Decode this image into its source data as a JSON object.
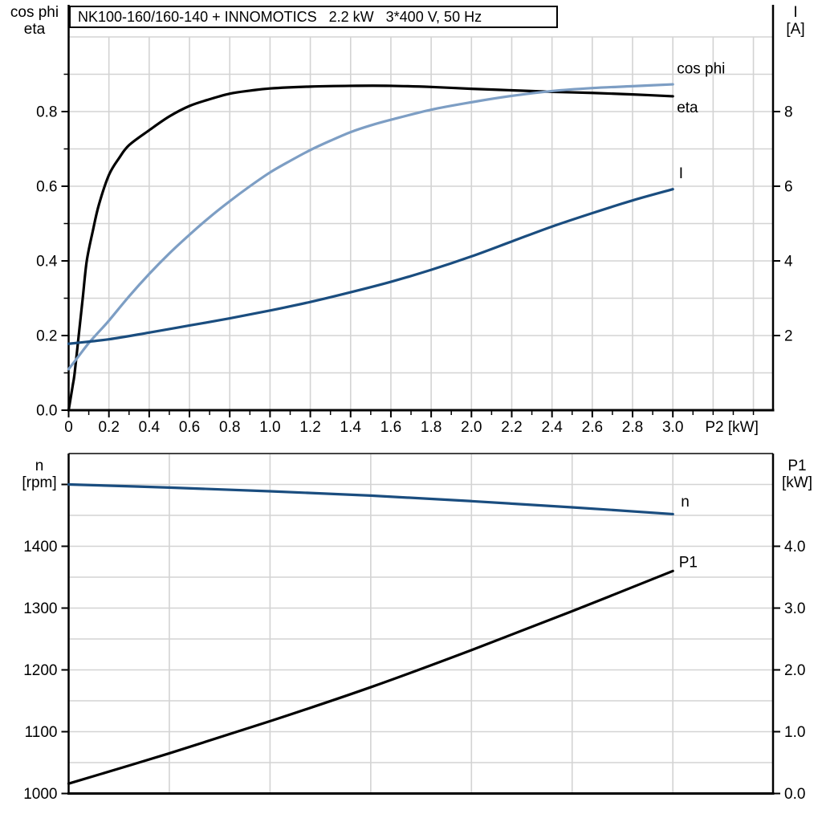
{
  "chart_data": [
    {
      "type": "line",
      "title": "NK100-160/160-140 + INNOMOTICS   2.2 kW   3*400 V, 50 Hz",
      "x_axis": {
        "label": "P2 [kW]",
        "min": 0,
        "max": 3.5,
        "unit": "kW"
      },
      "y_left": {
        "header": [
          "cos phi",
          "eta"
        ],
        "min": 0,
        "max": 1.0
      },
      "y_right": {
        "header": [
          "I",
          "[A]"
        ],
        "min": 0,
        "max": 10,
        "unit": "A"
      },
      "grid": true,
      "x_gridlines": [
        0.2,
        0.4,
        0.6,
        0.8,
        1.0,
        1.2,
        1.4,
        1.6,
        1.8,
        2.0,
        2.2,
        2.4,
        2.6,
        2.8,
        3.0,
        3.2,
        3.4
      ],
      "y_gridlines": [
        0.1,
        0.2,
        0.3,
        0.4,
        0.5,
        0.6,
        0.7,
        0.8,
        0.9,
        1.0
      ],
      "x_ticks": [
        {
          "v": 0,
          "t": "0"
        },
        {
          "v": 0.2,
          "t": "0.2"
        },
        {
          "v": 0.4,
          "t": "0.4"
        },
        {
          "v": 0.6,
          "t": "0.6"
        },
        {
          "v": 0.8,
          "t": "0.8"
        },
        {
          "v": 1.0,
          "t": "1.0"
        },
        {
          "v": 1.2,
          "t": "1.2"
        },
        {
          "v": 1.4,
          "t": "1.4"
        },
        {
          "v": 1.6,
          "t": "1.6"
        },
        {
          "v": 1.8,
          "t": "1.8"
        },
        {
          "v": 2.0,
          "t": "2.0"
        },
        {
          "v": 2.2,
          "t": "2.2"
        },
        {
          "v": 2.4,
          "t": "2.4"
        },
        {
          "v": 2.6,
          "t": "2.6"
        },
        {
          "v": 2.8,
          "t": "2.8"
        },
        {
          "v": 3.0,
          "t": "3.0"
        }
      ],
      "x_minor_ticks": [
        0.1,
        0.3,
        0.5,
        0.7,
        0.9,
        1.1,
        1.3,
        1.5,
        1.7,
        1.9,
        2.1,
        2.3,
        2.5,
        2.7,
        2.9,
        3.1,
        3.2,
        3.3,
        3.4
      ],
      "left_ticks": [
        {
          "v": 0,
          "t": "0.0"
        },
        {
          "v": 0.2,
          "t": "0.2"
        },
        {
          "v": 0.4,
          "t": "0.4"
        },
        {
          "v": 0.6,
          "t": "0.6"
        },
        {
          "v": 0.8,
          "t": "0.8"
        }
      ],
      "left_minor_ticks": [
        0.1,
        0.3,
        0.5,
        0.7,
        0.9
      ],
      "right_ticks": [
        {
          "v": 2,
          "t": "2"
        },
        {
          "v": 4,
          "t": "4"
        },
        {
          "v": 6,
          "t": "6"
        },
        {
          "v": 8,
          "t": "8"
        }
      ],
      "series": [
        {
          "id": "eta",
          "label": "eta",
          "color": "#000000",
          "axis": "left",
          "label_pos": [
            3.02,
            0.798
          ],
          "points": [
            [
              0,
              0
            ],
            [
              0.02,
              0.065
            ],
            [
              0.03,
              0.1
            ],
            [
              0.05,
              0.2
            ],
            [
              0.07,
              0.3
            ],
            [
              0.09,
              0.4
            ],
            [
              0.12,
              0.48
            ],
            [
              0.15,
              0.55
            ],
            [
              0.2,
              0.63
            ],
            [
              0.25,
              0.675
            ],
            [
              0.3,
              0.71
            ],
            [
              0.4,
              0.75
            ],
            [
              0.5,
              0.787
            ],
            [
              0.6,
              0.815
            ],
            [
              0.7,
              0.833
            ],
            [
              0.8,
              0.848
            ],
            [
              0.9,
              0.856
            ],
            [
              1.0,
              0.862
            ],
            [
              1.2,
              0.867
            ],
            [
              1.4,
              0.869
            ],
            [
              1.6,
              0.869
            ],
            [
              1.8,
              0.866
            ],
            [
              2.0,
              0.861
            ],
            [
              2.2,
              0.857
            ],
            [
              2.4,
              0.853
            ],
            [
              2.6,
              0.85
            ],
            [
              2.8,
              0.846
            ],
            [
              3.0,
              0.841
            ]
          ]
        },
        {
          "id": "cos-phi",
          "label": "cos phi",
          "color": "#7d9ec4",
          "axis": "left",
          "label_pos": [
            3.02,
            0.902
          ],
          "points": [
            [
              0,
              0.11
            ],
            [
              0.05,
              0.145
            ],
            [
              0.1,
              0.18
            ],
            [
              0.15,
              0.21
            ],
            [
              0.2,
              0.24
            ],
            [
              0.3,
              0.305
            ],
            [
              0.4,
              0.365
            ],
            [
              0.5,
              0.42
            ],
            [
              0.6,
              0.47
            ],
            [
              0.7,
              0.517
            ],
            [
              0.8,
              0.56
            ],
            [
              0.9,
              0.6
            ],
            [
              1.0,
              0.637
            ],
            [
              1.1,
              0.668
            ],
            [
              1.2,
              0.697
            ],
            [
              1.3,
              0.722
            ],
            [
              1.4,
              0.745
            ],
            [
              1.5,
              0.763
            ],
            [
              1.6,
              0.778
            ],
            [
              1.8,
              0.805
            ],
            [
              2.0,
              0.825
            ],
            [
              2.2,
              0.842
            ],
            [
              2.4,
              0.855
            ],
            [
              2.6,
              0.863
            ],
            [
              2.8,
              0.868
            ],
            [
              3.0,
              0.873
            ]
          ]
        },
        {
          "id": "current",
          "label": "I",
          "color": "#1a4d7f",
          "axis": "right",
          "label_pos": [
            3.03,
            6.22
          ],
          "points": [
            [
              0,
              1.78
            ],
            [
              0.2,
              1.9
            ],
            [
              0.4,
              2.08
            ],
            [
              0.6,
              2.27
            ],
            [
              0.8,
              2.46
            ],
            [
              1.0,
              2.67
            ],
            [
              1.2,
              2.9
            ],
            [
              1.4,
              3.16
            ],
            [
              1.6,
              3.44
            ],
            [
              1.8,
              3.76
            ],
            [
              2.0,
              4.12
            ],
            [
              2.2,
              4.52
            ],
            [
              2.4,
              4.92
            ],
            [
              2.6,
              5.28
            ],
            [
              2.8,
              5.62
            ],
            [
              3.0,
              5.92
            ]
          ]
        }
      ]
    },
    {
      "type": "line",
      "title": "",
      "x_axis": {
        "label": "",
        "min": 0,
        "max": 3.5,
        "unit": "kW"
      },
      "y_left": {
        "header": [
          "n",
          "[rpm]"
        ],
        "min": 1000,
        "max": 1550
      },
      "y_right": {
        "header": [
          "P1",
          "[kW]"
        ],
        "min": 0,
        "max": 5.5,
        "unit": "kW"
      },
      "grid": true,
      "x_gridlines": [
        0.5,
        1.0,
        1.5,
        2.0,
        2.5,
        3.0
      ],
      "y_gridlines": [
        1050,
        1100,
        1150,
        1200,
        1250,
        1300,
        1350,
        1400,
        1450,
        1500
      ],
      "x_ticks": [],
      "x_minor_ticks": [],
      "left_ticks": [
        {
          "v": 1000,
          "t": "1000"
        },
        {
          "v": 1100,
          "t": "1100"
        },
        {
          "v": 1200,
          "t": "1200"
        },
        {
          "v": 1300,
          "t": "1300"
        },
        {
          "v": 1400,
          "t": "1400"
        },
        {
          "v": 1500,
          "t": ""
        }
      ],
      "left_minor_ticks": [],
      "right_ticks": [
        {
          "v": 0,
          "t": "0.0"
        },
        {
          "v": 1,
          "t": "1.0"
        },
        {
          "v": 2,
          "t": "2.0"
        },
        {
          "v": 3,
          "t": "3.0"
        },
        {
          "v": 4,
          "t": "4.0"
        }
      ],
      "series": [
        {
          "id": "speed",
          "label": "n",
          "color": "#1a4d7f",
          "axis": "left",
          "label_pos": [
            3.04,
            1464
          ],
          "points": [
            [
              0,
              1500
            ],
            [
              0.5,
              1495
            ],
            [
              1.0,
              1489
            ],
            [
              1.5,
              1482
            ],
            [
              2.0,
              1473
            ],
            [
              2.5,
              1463
            ],
            [
              3.0,
              1452
            ]
          ]
        },
        {
          "id": "power-input",
          "label": "P1",
          "color": "#000000",
          "axis": "right",
          "label_pos": [
            3.03,
            3.66
          ],
          "points": [
            [
              0,
              0.16
            ],
            [
              0.5,
              0.65
            ],
            [
              1.0,
              1.17
            ],
            [
              1.5,
              1.72
            ],
            [
              2.0,
              2.32
            ],
            [
              2.5,
              2.95
            ],
            [
              3.0,
              3.6
            ]
          ]
        }
      ]
    }
  ],
  "colors": {
    "eta_curve": "#000000",
    "cos_phi_curve": "#7d9ec4",
    "current_curve": "#1a4d7f",
    "grid": "#d3d3d3",
    "axis": "#000000"
  }
}
